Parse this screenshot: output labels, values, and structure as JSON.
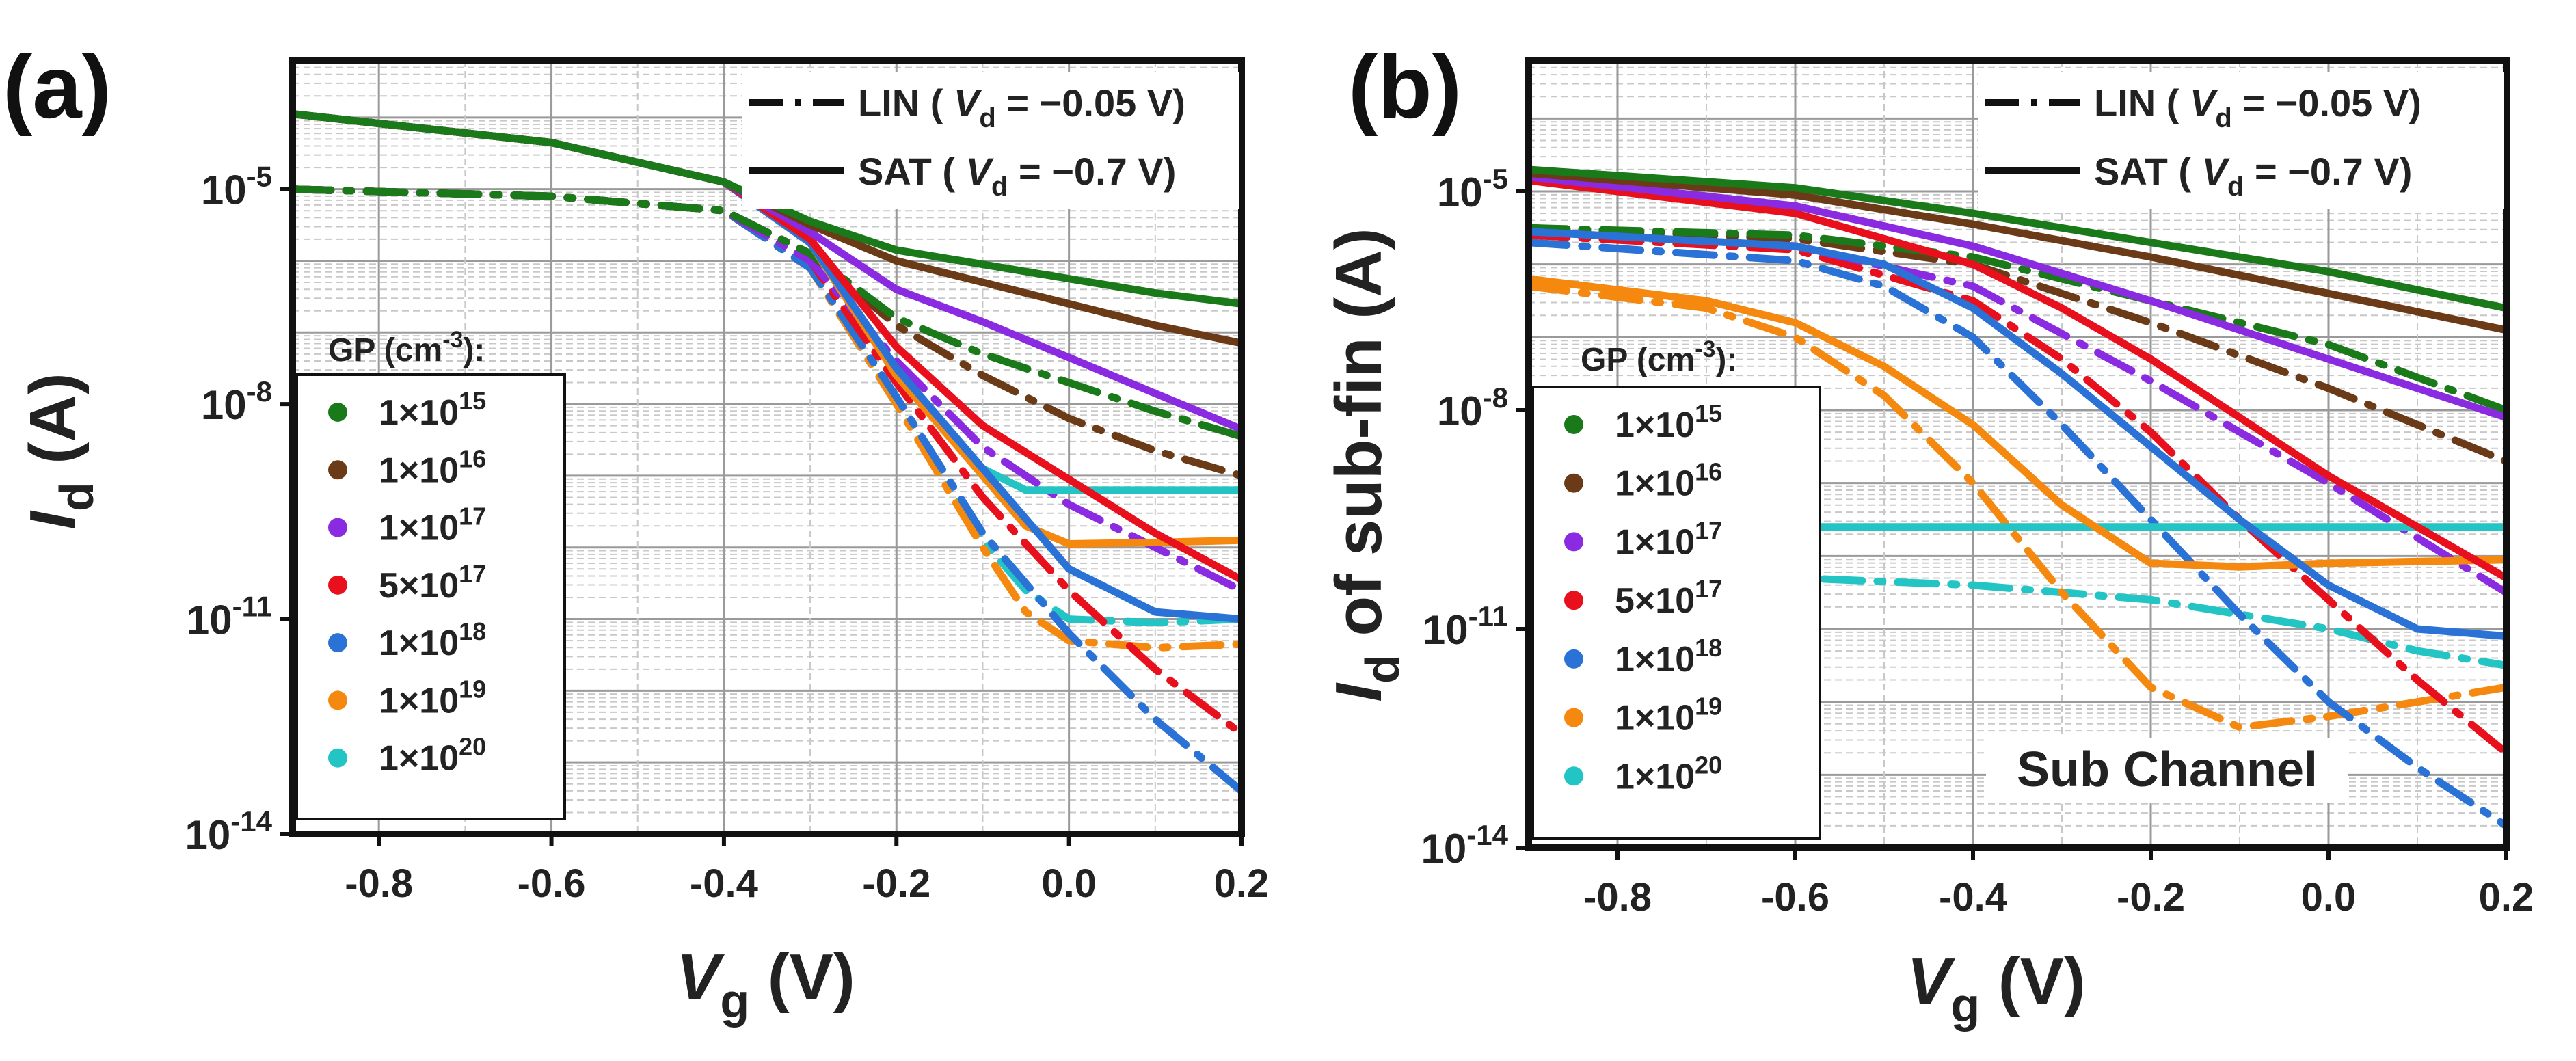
{
  "figure": {
    "panel_labels": [
      "(a)",
      "(b)"
    ]
  },
  "legend_common": {
    "style_entries": [
      {
        "style": "dash-dot",
        "text": "LIN ( V_d = −0.05 V)",
        "prefix": "LIN ( ",
        "var": "V",
        "sub": "d",
        "suffix": " = −0.05 V)"
      },
      {
        "style": "solid",
        "text": "SAT ( V_d = −0.7 V)",
        "prefix": "SAT ( ",
        "var": "V",
        "sub": "d",
        "suffix": " = −0.7 V)"
      }
    ],
    "gp_title": "GP (cm-3):",
    "gp_title_base": "GP (cm",
    "gp_title_exp": "-3",
    "gp_title_end": "):",
    "gp_entries": [
      {
        "label": "1×1015",
        "mant": "1×10",
        "exp": "15",
        "color": "#1a7a1a"
      },
      {
        "label": "1×1016",
        "mant": "1×10",
        "exp": "16",
        "color": "#6b3a17"
      },
      {
        "label": "1×1017",
        "mant": "1×10",
        "exp": "17",
        "color": "#8a2be2"
      },
      {
        "label": "5×1017",
        "mant": "5×10",
        "exp": "17",
        "color": "#e8101c"
      },
      {
        "label": "1×1018",
        "mant": "1×10",
        "exp": "18",
        "color": "#2a72d6"
      },
      {
        "label": "1×1019",
        "mant": "1×10",
        "exp": "19",
        "color": "#f5890f"
      },
      {
        "label": "1×1020",
        "mant": "1×10",
        "exp": "20",
        "color": "#22c4c4"
      }
    ]
  },
  "chart_data": [
    {
      "panel": "(a)",
      "type": "line",
      "title": "",
      "xlabel": "Vg (V)",
      "xlabel_var": "V",
      "xlabel_sub": "g",
      "xlabel_unit": " (V)",
      "ylabel": "Id (A)",
      "ylabel_var": "I",
      "ylabel_sub": "d",
      "ylabel_unit": " (A)",
      "yscale": "log",
      "xlim": [
        -0.9,
        0.2
      ],
      "ylim_log10": [
        -14,
        -3.2
      ],
      "xticks": [
        -0.8,
        -0.6,
        -0.4,
        -0.2,
        0.0,
        0.2
      ],
      "xtick_labels": [
        "-0.8",
        "-0.6",
        "-0.4",
        "-0.2",
        "0.0",
        "0.2"
      ],
      "yticks_log10": [
        -5,
        -8,
        -11,
        -14
      ],
      "ytick_labels": [
        {
          "base": "10",
          "exp": "-5"
        },
        {
          "base": "10",
          "exp": "-8"
        },
        {
          "base": "10",
          "exp": "-11"
        },
        {
          "base": "10",
          "exp": "-14"
        }
      ],
      "annotation": "",
      "series": [
        {
          "name": "1×10^15 SAT",
          "gp": 0,
          "mode": "SAT",
          "x": [
            -0.9,
            -0.6,
            -0.4,
            -0.3,
            -0.2,
            -0.1,
            0.0,
            0.1,
            0.2
          ],
          "log10_y": [
            -3.95,
            -4.35,
            -4.9,
            -5.45,
            -5.85,
            -6.05,
            -6.25,
            -6.45,
            -6.6
          ]
        },
        {
          "name": "1×10^16 SAT",
          "gp": 1,
          "mode": "SAT",
          "x": [
            -0.9,
            -0.6,
            -0.4,
            -0.3,
            -0.2,
            -0.1,
            0.0,
            0.1,
            0.2
          ],
          "log10_y": [
            -3.95,
            -4.35,
            -4.9,
            -5.5,
            -6.0,
            -6.3,
            -6.6,
            -6.9,
            -7.15
          ]
        },
        {
          "name": "1×10^17 SAT",
          "gp": 2,
          "mode": "SAT",
          "x": [
            -0.9,
            -0.6,
            -0.4,
            -0.3,
            -0.2,
            -0.1,
            0.0,
            0.1,
            0.2
          ],
          "log10_y": [
            -3.95,
            -4.35,
            -4.9,
            -5.6,
            -6.4,
            -6.85,
            -7.35,
            -7.85,
            -8.35
          ]
        },
        {
          "name": "5×10^17 SAT",
          "gp": 3,
          "mode": "SAT",
          "x": [
            -0.9,
            -0.6,
            -0.4,
            -0.3,
            -0.2,
            -0.1,
            0.0,
            0.1,
            0.2
          ],
          "log10_y": [
            -3.95,
            -4.35,
            -4.9,
            -5.7,
            -7.2,
            -8.3,
            -9.05,
            -9.8,
            -10.45
          ]
        },
        {
          "name": "1×10^18 SAT",
          "gp": 4,
          "mode": "SAT",
          "x": [
            -0.9,
            -0.6,
            -0.4,
            -0.3,
            -0.2,
            -0.1,
            -0.05,
            0.0,
            0.1,
            0.2
          ],
          "log10_y": [
            -3.95,
            -4.35,
            -4.9,
            -5.75,
            -7.5,
            -8.9,
            -9.6,
            -10.3,
            -10.9,
            -11.0
          ]
        },
        {
          "name": "1×10^19 SAT",
          "gp": 5,
          "mode": "SAT",
          "x": [
            -0.9,
            -0.6,
            -0.4,
            -0.3,
            -0.2,
            -0.1,
            -0.05,
            0.0,
            0.1,
            0.2
          ],
          "log10_y": [
            -3.95,
            -4.35,
            -4.9,
            -5.75,
            -7.6,
            -9.0,
            -9.7,
            -9.95,
            -9.93,
            -9.9
          ]
        },
        {
          "name": "1×10^20 SAT",
          "gp": 6,
          "mode": "SAT",
          "x": [
            -0.9,
            -0.6,
            -0.4,
            -0.3,
            -0.2,
            -0.1,
            -0.05,
            0.0,
            0.1,
            0.2
          ],
          "log10_y": [
            -3.95,
            -4.35,
            -4.9,
            -5.75,
            -7.6,
            -8.9,
            -9.2,
            -9.2,
            -9.2,
            -9.2
          ]
        },
        {
          "name": "1×10^15 LIN",
          "gp": 0,
          "mode": "LIN",
          "x": [
            -0.9,
            -0.6,
            -0.4,
            -0.3,
            -0.2,
            -0.1,
            0.0,
            0.1,
            0.2
          ],
          "log10_y": [
            -5.0,
            -5.1,
            -5.3,
            -5.9,
            -6.8,
            -7.3,
            -7.7,
            -8.1,
            -8.45
          ]
        },
        {
          "name": "1×10^16 LIN",
          "gp": 1,
          "mode": "LIN",
          "x": [
            -0.9,
            -0.6,
            -0.4,
            -0.3,
            -0.2,
            -0.1,
            0.0,
            0.1,
            0.2
          ],
          "log10_y": [
            -5.0,
            -5.1,
            -5.3,
            -5.9,
            -6.9,
            -7.6,
            -8.2,
            -8.65,
            -9.0
          ]
        },
        {
          "name": "1×10^17 LIN",
          "gp": 2,
          "mode": "LIN",
          "x": [
            -0.9,
            -0.6,
            -0.4,
            -0.3,
            -0.2,
            -0.1,
            0.0,
            0.1,
            0.2
          ],
          "log10_y": [
            -5.0,
            -5.1,
            -5.3,
            -6.0,
            -7.4,
            -8.6,
            -9.4,
            -10.0,
            -10.6
          ]
        },
        {
          "name": "5×10^17 LIN",
          "gp": 3,
          "mode": "LIN",
          "x": [
            -0.9,
            -0.6,
            -0.4,
            -0.3,
            -0.2,
            -0.1,
            0.0,
            0.1,
            0.2
          ],
          "log10_y": [
            -5.0,
            -5.1,
            -5.3,
            -6.0,
            -7.7,
            -9.3,
            -10.6,
            -11.7,
            -12.6
          ]
        },
        {
          "name": "1×10^18 LIN",
          "gp": 4,
          "mode": "LIN",
          "x": [
            -0.9,
            -0.6,
            -0.4,
            -0.3,
            -0.2,
            -0.1,
            0.0,
            0.1,
            0.2
          ],
          "log10_y": [
            -5.0,
            -5.1,
            -5.3,
            -6.1,
            -7.9,
            -9.8,
            -11.2,
            -12.4,
            -13.4
          ]
        },
        {
          "name": "1×10^19 LIN",
          "gp": 5,
          "mode": "LIN",
          "x": [
            -0.9,
            -0.6,
            -0.4,
            -0.3,
            -0.2,
            -0.1,
            -0.05,
            0.0,
            0.1,
            0.2
          ],
          "log10_y": [
            -5.0,
            -5.1,
            -5.3,
            -6.1,
            -8.0,
            -10.0,
            -10.9,
            -11.3,
            -11.4,
            -11.35
          ]
        },
        {
          "name": "1×10^20 LIN",
          "gp": 6,
          "mode": "LIN",
          "x": [
            -0.9,
            -0.6,
            -0.4,
            -0.3,
            -0.2,
            -0.1,
            -0.05,
            0.0,
            0.1,
            0.2
          ],
          "log10_y": [
            -5.0,
            -5.1,
            -5.3,
            -6.1,
            -8.0,
            -9.9,
            -10.6,
            -11.0,
            -11.05,
            -11.0
          ]
        }
      ]
    },
    {
      "panel": "(b)",
      "type": "line",
      "title": "",
      "xlabel": "Vg (V)",
      "xlabel_var": "V",
      "xlabel_sub": "g",
      "xlabel_unit": " (V)",
      "ylabel": "Id of sub-fin (A)",
      "ylabel_var": "I",
      "ylabel_sub": "d",
      "ylabel_unit": " of sub-fin (A)",
      "yscale": "log",
      "xlim": [
        -0.9,
        0.2
      ],
      "ylim_log10": [
        -14,
        -3.2
      ],
      "xticks": [
        -0.8,
        -0.6,
        -0.4,
        -0.2,
        0.0,
        0.2
      ],
      "xtick_labels": [
        "-0.8",
        "-0.6",
        "-0.4",
        "-0.2",
        "0.0",
        "0.2"
      ],
      "yticks_log10": [
        -5,
        -8,
        -11,
        -14
      ],
      "ytick_labels": [
        {
          "base": "10",
          "exp": "-5"
        },
        {
          "base": "10",
          "exp": "-8"
        },
        {
          "base": "10",
          "exp": "-11"
        },
        {
          "base": "10",
          "exp": "-14"
        }
      ],
      "annotation": "Sub Channel",
      "series": [
        {
          "name": "1×10^15 SAT",
          "gp": 0,
          "mode": "SAT",
          "x": [
            -0.9,
            -0.6,
            -0.4,
            -0.2,
            0.0,
            0.2
          ],
          "log10_y": [
            -4.7,
            -4.95,
            -5.3,
            -5.7,
            -6.1,
            -6.6
          ]
        },
        {
          "name": "1×10^16 SAT",
          "gp": 1,
          "mode": "SAT",
          "x": [
            -0.9,
            -0.6,
            -0.4,
            -0.2,
            0.0,
            0.2
          ],
          "log10_y": [
            -4.75,
            -5.05,
            -5.45,
            -5.9,
            -6.4,
            -6.9
          ]
        },
        {
          "name": "1×10^17 SAT",
          "gp": 2,
          "mode": "SAT",
          "x": [
            -0.9,
            -0.6,
            -0.4,
            -0.2,
            0.0,
            0.2
          ],
          "log10_y": [
            -4.8,
            -5.2,
            -5.75,
            -6.5,
            -7.3,
            -8.1
          ]
        },
        {
          "name": "5×10^17 SAT",
          "gp": 3,
          "mode": "SAT",
          "x": [
            -0.9,
            -0.6,
            -0.4,
            -0.3,
            -0.2,
            -0.1,
            0.0,
            0.1,
            0.2
          ],
          "log10_y": [
            -4.85,
            -5.3,
            -6.0,
            -6.6,
            -7.3,
            -8.1,
            -8.9,
            -9.6,
            -10.3
          ]
        },
        {
          "name": "1×10^18 SAT",
          "gp": 4,
          "mode": "SAT",
          "x": [
            -0.9,
            -0.6,
            -0.5,
            -0.4,
            -0.3,
            -0.2,
            -0.1,
            0.0,
            0.1,
            0.2
          ],
          "log10_y": [
            -5.55,
            -5.75,
            -6.0,
            -6.6,
            -7.5,
            -8.5,
            -9.5,
            -10.4,
            -11.0,
            -11.1
          ]
        },
        {
          "name": "1×10^19 SAT",
          "gp": 5,
          "mode": "SAT",
          "x": [
            -0.9,
            -0.7,
            -0.6,
            -0.5,
            -0.4,
            -0.3,
            -0.2,
            -0.1,
            0.0,
            0.2
          ],
          "log10_y": [
            -6.2,
            -6.5,
            -6.8,
            -7.4,
            -8.2,
            -9.3,
            -10.1,
            -10.15,
            -10.1,
            -10.05
          ]
        },
        {
          "name": "1×10^20 SAT",
          "gp": 6,
          "mode": "SAT",
          "x": [
            -0.9,
            -0.6,
            -0.3,
            0.0,
            0.2
          ],
          "log10_y": [
            -9.6,
            -9.6,
            -9.6,
            -9.6,
            -9.6
          ]
        },
        {
          "name": "1×10^15 LIN",
          "gp": 0,
          "mode": "LIN",
          "x": [
            -0.9,
            -0.6,
            -0.4,
            -0.2,
            0.0,
            0.2
          ],
          "log10_y": [
            -5.5,
            -5.6,
            -5.9,
            -6.5,
            -7.1,
            -8.0
          ]
        },
        {
          "name": "1×10^16 LIN",
          "gp": 1,
          "mode": "LIN",
          "x": [
            -0.9,
            -0.6,
            -0.4,
            -0.2,
            0.0,
            0.2
          ],
          "log10_y": [
            -5.5,
            -5.65,
            -6.0,
            -6.8,
            -7.7,
            -8.7
          ]
        },
        {
          "name": "1×10^17 LIN",
          "gp": 2,
          "mode": "LIN",
          "x": [
            -0.9,
            -0.6,
            -0.4,
            -0.2,
            0.0,
            0.2
          ],
          "log10_y": [
            -5.55,
            -5.75,
            -6.3,
            -7.6,
            -9.0,
            -10.5
          ]
        },
        {
          "name": "5×10^17 LIN",
          "gp": 3,
          "mode": "LIN",
          "x": [
            -0.9,
            -0.6,
            -0.4,
            -0.3,
            -0.2,
            -0.1,
            0.0,
            0.1,
            0.2
          ],
          "log10_y": [
            -5.6,
            -5.8,
            -6.5,
            -7.3,
            -8.3,
            -9.5,
            -10.6,
            -11.7,
            -12.7
          ]
        },
        {
          "name": "1×10^18 LIN",
          "gp": 4,
          "mode": "LIN",
          "x": [
            -0.9,
            -0.6,
            -0.5,
            -0.4,
            -0.3,
            -0.2,
            -0.1,
            0.0,
            0.1,
            0.2
          ],
          "log10_y": [
            -5.7,
            -5.95,
            -6.3,
            -7.0,
            -8.2,
            -9.5,
            -10.8,
            -12.0,
            -12.9,
            -13.7
          ]
        },
        {
          "name": "1×10^19 LIN",
          "gp": 5,
          "mode": "LIN",
          "x": [
            -0.9,
            -0.7,
            -0.6,
            -0.5,
            -0.4,
            -0.3,
            -0.2,
            -0.1,
            0.0,
            0.1,
            0.2
          ],
          "log10_y": [
            -6.3,
            -6.6,
            -7.0,
            -7.8,
            -9.0,
            -10.5,
            -11.8,
            -12.35,
            -12.2,
            -12.0,
            -11.8
          ]
        },
        {
          "name": "1×10^20 LIN",
          "gp": 6,
          "mode": "LIN",
          "x": [
            -0.9,
            -0.6,
            -0.4,
            -0.2,
            0.0,
            0.1,
            0.2
          ],
          "log10_y": [
            -10.3,
            -10.3,
            -10.4,
            -10.6,
            -11.0,
            -11.3,
            -11.5
          ]
        }
      ]
    }
  ]
}
